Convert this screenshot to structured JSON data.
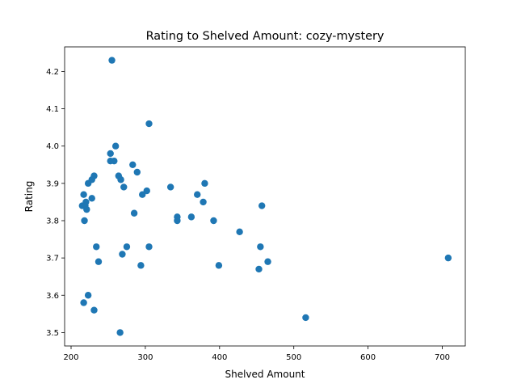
{
  "chart_data": {
    "type": "scatter",
    "title": "Rating to Shelved Amount: cozy-mystery",
    "xlabel": "Shelved Amount",
    "ylabel": "Rating",
    "xlim": [
      191.3,
      731.0
    ],
    "ylim": [
      3.464,
      4.266
    ],
    "xticks": [
      200,
      300,
      400,
      500,
      600,
      700
    ],
    "yticks": [
      3.5,
      3.6,
      3.7,
      3.8,
      3.9,
      4.0,
      4.1,
      4.2
    ],
    "xtick_labels": [
      "200",
      "300",
      "400",
      "500",
      "600",
      "700"
    ],
    "ytick_labels": [
      "3.5",
      "3.6",
      "3.7",
      "3.8",
      "3.9",
      "4.0",
      "4.1",
      "4.2"
    ],
    "grid": false,
    "marker_color": "#1f77b4",
    "points": [
      {
        "x": 255,
        "y": 4.23
      },
      {
        "x": 305,
        "y": 4.06
      },
      {
        "x": 260,
        "y": 4.0
      },
      {
        "x": 253,
        "y": 3.98
      },
      {
        "x": 253,
        "y": 3.96
      },
      {
        "x": 258,
        "y": 3.96
      },
      {
        "x": 283,
        "y": 3.95
      },
      {
        "x": 289,
        "y": 3.93
      },
      {
        "x": 231,
        "y": 3.92
      },
      {
        "x": 264,
        "y": 3.92
      },
      {
        "x": 228,
        "y": 3.91
      },
      {
        "x": 267,
        "y": 3.91
      },
      {
        "x": 223,
        "y": 3.9
      },
      {
        "x": 380,
        "y": 3.9
      },
      {
        "x": 271,
        "y": 3.89
      },
      {
        "x": 334,
        "y": 3.89
      },
      {
        "x": 302,
        "y": 3.88
      },
      {
        "x": 217,
        "y": 3.87
      },
      {
        "x": 296,
        "y": 3.87
      },
      {
        "x": 370,
        "y": 3.87
      },
      {
        "x": 228,
        "y": 3.86
      },
      {
        "x": 220,
        "y": 3.85
      },
      {
        "x": 378,
        "y": 3.85
      },
      {
        "x": 215,
        "y": 3.84
      },
      {
        "x": 457,
        "y": 3.84
      },
      {
        "x": 219,
        "y": 3.84
      },
      {
        "x": 221,
        "y": 3.83
      },
      {
        "x": 285,
        "y": 3.82
      },
      {
        "x": 343,
        "y": 3.81
      },
      {
        "x": 362,
        "y": 3.81
      },
      {
        "x": 218,
        "y": 3.8
      },
      {
        "x": 343,
        "y": 3.8
      },
      {
        "x": 392,
        "y": 3.8
      },
      {
        "x": 427,
        "y": 3.77
      },
      {
        "x": 234,
        "y": 3.73
      },
      {
        "x": 275,
        "y": 3.73
      },
      {
        "x": 305,
        "y": 3.73
      },
      {
        "x": 455,
        "y": 3.73
      },
      {
        "x": 269,
        "y": 3.71
      },
      {
        "x": 708,
        "y": 3.7
      },
      {
        "x": 237,
        "y": 3.69
      },
      {
        "x": 465,
        "y": 3.69
      },
      {
        "x": 294,
        "y": 3.68
      },
      {
        "x": 399,
        "y": 3.68
      },
      {
        "x": 453,
        "y": 3.67
      },
      {
        "x": 223,
        "y": 3.6
      },
      {
        "x": 217,
        "y": 3.58
      },
      {
        "x": 231,
        "y": 3.56
      },
      {
        "x": 516,
        "y": 3.54
      },
      {
        "x": 266,
        "y": 3.5
      }
    ]
  }
}
